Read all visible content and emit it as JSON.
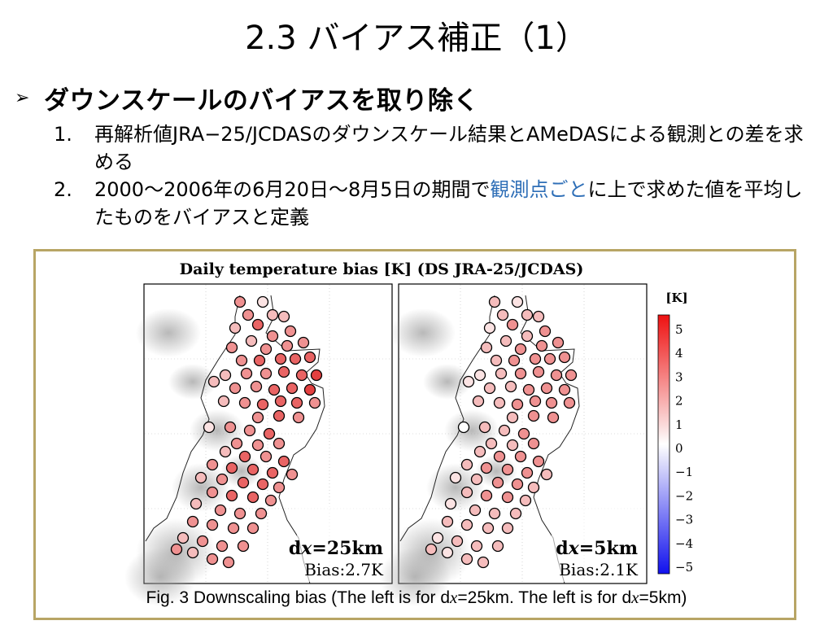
{
  "slide": {
    "title": "2.3 バイアス補正（1）",
    "bullet": "ダウンスケールのバイアスを取り除く",
    "items": [
      {
        "num": "1.",
        "text": "再解析値JRA−25/JCDASのダウンスケール結果とAMeDASによる観測との差を求める"
      },
      {
        "num": "2.",
        "text_before": "2000～2006年の6月20日～8月5日の期間で",
        "text_highlight": "観測点ごと",
        "text_after": "に上で求めた値を平均したものをバイアスと定義"
      }
    ]
  },
  "figure": {
    "title": "Daily temperature bias [K] (DS JRA-25/JCDAS)",
    "panels": [
      {
        "dx_prefix": "d",
        "dx_var": "x",
        "dx_value": "=25km",
        "bias": "Bias:2.7K"
      },
      {
        "dx_prefix": "d",
        "dx_var": "x",
        "dx_value": "=5km",
        "bias": "Bias:2.1K"
      }
    ],
    "colorbar": {
      "unit": "[K]",
      "ticks": [
        "5",
        "4",
        "3",
        "2",
        "1",
        "0",
        "−1",
        "−2",
        "−3",
        "−4",
        "−5"
      ]
    },
    "caption_part1": "Fig. 3 Downscaling bias (The left is for d",
    "caption_var1": "x",
    "caption_part2": "=25km. The left is for d",
    "caption_var2": "x",
    "caption_part3": "=5km)"
  }
}
